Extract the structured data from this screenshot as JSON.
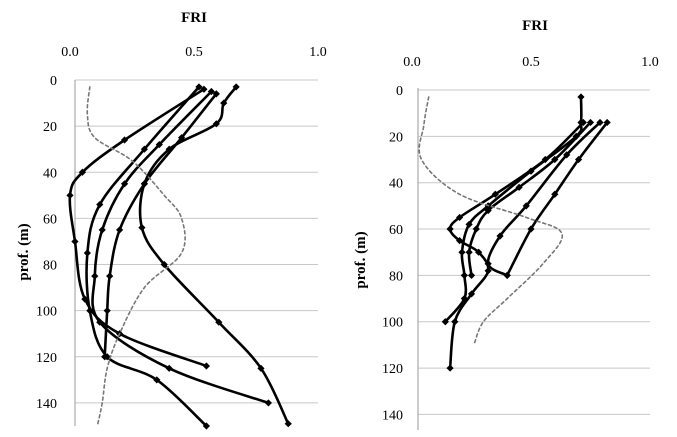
{
  "chart_data": [
    {
      "type": "line",
      "title": "FRI",
      "ylabel": "prof. (m)",
      "x_ticks": [
        "0.0",
        "0.5",
        "1.0"
      ],
      "y_ticks": [
        "0",
        "20",
        "40",
        "60",
        "80",
        "100",
        "120",
        "140"
      ],
      "xlim": [
        0,
        1
      ],
      "ylim": [
        0,
        150
      ],
      "y_inverted": true,
      "grid": "horizontal",
      "series": [
        {
          "style": "solid",
          "markers": true,
          "points": [
            [
              0.52,
              3
            ],
            [
              0.3,
              30
            ],
            [
              0.12,
              54
            ],
            [
              0.07,
              75
            ],
            [
              0.08,
              100
            ],
            [
              0.15,
              120
            ],
            [
              0.35,
              130
            ],
            [
              0.55,
              150
            ]
          ]
        },
        {
          "style": "solid",
          "markers": true,
          "points": [
            [
              0.54,
              4
            ],
            [
              0.22,
              26
            ],
            [
              0.05,
              40
            ],
            [
              0.0,
              50
            ],
            [
              0.02,
              70
            ],
            [
              0.06,
              95
            ],
            [
              0.2,
              110
            ],
            [
              0.55,
              124
            ]
          ]
        },
        {
          "style": "solid",
          "markers": true,
          "points": [
            [
              0.57,
              5
            ],
            [
              0.36,
              28
            ],
            [
              0.22,
              45
            ],
            [
              0.13,
              65
            ],
            [
              0.1,
              85
            ],
            [
              0.12,
              105
            ],
            [
              0.4,
              125
            ],
            [
              0.8,
              140
            ]
          ]
        },
        {
          "style": "solid",
          "markers": true,
          "points": [
            [
              0.59,
              6
            ],
            [
              0.45,
              25
            ],
            [
              0.3,
              45
            ],
            [
              0.2,
              65
            ],
            [
              0.16,
              85
            ],
            [
              0.15,
              100
            ],
            [
              0.14,
              120
            ]
          ]
        },
        {
          "style": "solid",
          "markers": true,
          "points": [
            [
              0.67,
              3
            ],
            [
              0.62,
              10
            ],
            [
              0.59,
              19
            ],
            [
              0.4,
              30
            ],
            [
              0.3,
              45
            ],
            [
              0.29,
              64
            ],
            [
              0.38,
              80
            ],
            [
              0.6,
              105
            ],
            [
              0.77,
              125
            ],
            [
              0.88,
              149
            ]
          ]
        },
        {
          "style": "dashed",
          "markers": false,
          "points": [
            [
              0.08,
              3
            ],
            [
              0.07,
              15
            ],
            [
              0.1,
              25
            ],
            [
              0.25,
              35
            ],
            [
              0.38,
              50
            ],
            [
              0.45,
              60
            ],
            [
              0.45,
              75
            ],
            [
              0.3,
              90
            ],
            [
              0.2,
              110
            ],
            [
              0.15,
              125
            ],
            [
              0.13,
              140
            ],
            [
              0.11,
              150
            ]
          ]
        }
      ]
    },
    {
      "type": "line",
      "title": "FRI",
      "ylabel": "prof. (m)",
      "x_ticks": [
        "0.0",
        "0.5",
        "1.0"
      ],
      "y_ticks": [
        "0",
        "20",
        "40",
        "60",
        "80",
        "100",
        "120",
        "140"
      ],
      "xlim": [
        0,
        1
      ],
      "ylim": [
        0,
        145
      ],
      "y_inverted": true,
      "grid": "horizontal",
      "series": [
        {
          "style": "solid",
          "markers": true,
          "points": [
            [
              0.71,
              3
            ],
            [
              0.71,
              14
            ],
            [
              0.69,
              20
            ],
            [
              0.5,
              35
            ],
            [
              0.32,
              50
            ],
            [
              0.24,
              58
            ],
            [
              0.21,
              70
            ],
            [
              0.22,
              80
            ],
            [
              0.22,
              90
            ],
            [
              0.14,
              100
            ]
          ]
        },
        {
          "style": "solid",
          "markers": true,
          "points": [
            [
              0.72,
              14
            ],
            [
              0.56,
              30
            ],
            [
              0.35,
              45
            ],
            [
              0.2,
              55
            ],
            [
              0.16,
              60
            ],
            [
              0.2,
              65
            ],
            [
              0.28,
              70
            ],
            [
              0.32,
              78
            ],
            [
              0.25,
              88
            ],
            [
              0.18,
              100
            ],
            [
              0.16,
              120
            ]
          ]
        },
        {
          "style": "solid",
          "markers": true,
          "points": [
            [
              0.75,
              14
            ],
            [
              0.6,
              30
            ],
            [
              0.45,
              42
            ],
            [
              0.32,
              52
            ],
            [
              0.27,
              60
            ],
            [
              0.24,
              70
            ],
            [
              0.25,
              80
            ]
          ]
        },
        {
          "style": "solid",
          "markers": true,
          "points": [
            [
              0.79,
              14
            ],
            [
              0.65,
              28
            ],
            [
              0.48,
              50
            ],
            [
              0.37,
              63
            ],
            [
              0.32,
              75
            ],
            [
              0.4,
              80
            ]
          ]
        },
        {
          "style": "solid",
          "markers": true,
          "points": [
            [
              0.82,
              14
            ],
            [
              0.7,
              30
            ],
            [
              0.6,
              45
            ],
            [
              0.5,
              60
            ],
            [
              0.4,
              80
            ]
          ]
        },
        {
          "style": "dashed",
          "markers": false,
          "points": [
            [
              0.07,
              3
            ],
            [
              0.05,
              15
            ],
            [
              0.04,
              30
            ],
            [
              0.2,
              45
            ],
            [
              0.48,
              55
            ],
            [
              0.63,
              62
            ],
            [
              0.55,
              75
            ],
            [
              0.4,
              90
            ],
            [
              0.3,
              100
            ],
            [
              0.26,
              110
            ]
          ]
        }
      ]
    }
  ]
}
